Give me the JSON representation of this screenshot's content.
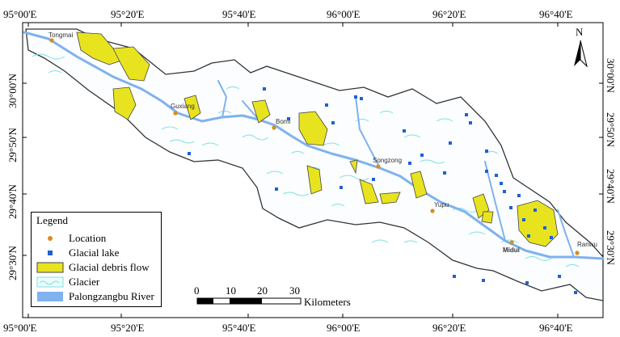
{
  "top_labels": [
    "95°00'E",
    "95°20'E",
    "95°40'E",
    "96°00'E",
    "96°20'E",
    "96°40'E"
  ],
  "bottom_labels": [
    "95°00'E",
    "95°20'E",
    "95°40'E",
    "96°00'E",
    "96°20'E",
    "96°40'E"
  ],
  "left_labels": [
    "30°00'N",
    "29°50'N",
    "29°40'N",
    "29°30'N"
  ],
  "right_labels": [
    "30°00'N",
    "29°50'N",
    "29°40'N",
    "29°30'N"
  ],
  "north_arrow": {
    "letter": "N",
    "icon": "north-arrow-icon"
  },
  "places": [
    {
      "name": "Tongmai",
      "bold": false
    },
    {
      "name": "Guxiang",
      "bold": false
    },
    {
      "name": "Bomi",
      "bold": false
    },
    {
      "name": "Songzong",
      "bold": false
    },
    {
      "name": "Yupu",
      "bold": false
    },
    {
      "name": "Midui",
      "bold": true
    },
    {
      "name": "Ranwu",
      "bold": false
    }
  ],
  "scale_bar": {
    "ticks": [
      "0",
      "10",
      "20",
      "30"
    ],
    "unit": "Kilometers"
  },
  "legend": {
    "title": "Legend",
    "items": [
      {
        "label": "Location",
        "icon": "location-dot-icon",
        "color": "#d98c1c"
      },
      {
        "label": "Glacial lake",
        "icon": "glacial-lake-icon",
        "color": "#1f5fd6"
      },
      {
        "label": "Glacial debris flow",
        "icon": "debris-flow-icon",
        "color": "#e8e31f"
      },
      {
        "label": "Glacier",
        "icon": "glacier-icon",
        "color": "#7fe0e0"
      },
      {
        "label": "Palongzangbu River",
        "icon": "river-icon",
        "color": "#7fb2ee"
      }
    ]
  },
  "colors": {
    "river": "#7fb2ee",
    "glacier": "#7fe0e0",
    "debris": "#e8e31f",
    "lake": "#1f5fd6",
    "location": "#d98c1c",
    "boundary": "#333333"
  }
}
